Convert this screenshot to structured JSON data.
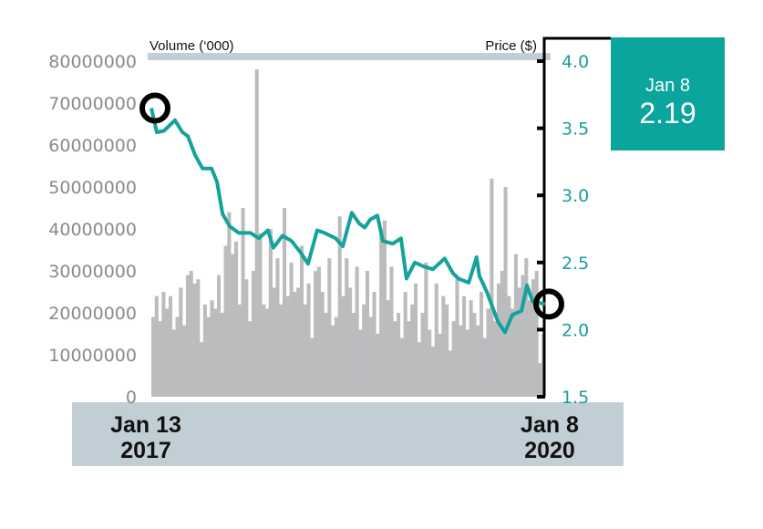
{
  "chart_data": {
    "type": "bar+line",
    "left_axis": {
      "title": "Volume (‘000)",
      "ticks": [
        "0",
        "10000000",
        "20000000",
        "30000000",
        "40000000",
        "50000000",
        "60000000",
        "70000000",
        "80000000"
      ],
      "range": [
        0,
        80000000
      ]
    },
    "right_axis": {
      "title": "Price ($)",
      "ticks": [
        "1.5",
        "2.0",
        "2.5",
        "3.0",
        "3.5",
        "4.0"
      ],
      "range": [
        1.5,
        4.0
      ]
    },
    "x_labels": [
      {
        "line1": "Jan 13",
        "line2": "2017"
      },
      {
        "line1": "Jan 8",
        "line2": "2020"
      }
    ],
    "price_series": {
      "name": "Price",
      "color": "#14a39b",
      "x": [
        0,
        0.014,
        0.032,
        0.06,
        0.079,
        0.093,
        0.111,
        0.13,
        0.153,
        0.167,
        0.181,
        0.199,
        0.222,
        0.252,
        0.273,
        0.296,
        0.31,
        0.333,
        0.356,
        0.38,
        0.398,
        0.421,
        0.44,
        0.468,
        0.486,
        0.509,
        0.528,
        0.542,
        0.556,
        0.574,
        0.588,
        0.613,
        0.634,
        0.648,
        0.669,
        0.692,
        0.715,
        0.745,
        0.766,
        0.78,
        0.806,
        0.826,
        0.833,
        0.852,
        0.88,
        0.898,
        0.917,
        0.94,
        0.954,
        0.968,
        1.0
      ],
      "values": [
        3.65,
        3.47,
        3.48,
        3.56,
        3.47,
        3.44,
        3.3,
        3.2,
        3.2,
        3.1,
        2.86,
        2.77,
        2.72,
        2.72,
        2.68,
        2.74,
        2.61,
        2.7,
        2.66,
        2.57,
        2.49,
        2.74,
        2.72,
        2.68,
        2.62,
        2.87,
        2.79,
        2.76,
        2.82,
        2.85,
        2.66,
        2.64,
        2.68,
        2.38,
        2.5,
        2.47,
        2.45,
        2.53,
        2.42,
        2.38,
        2.35,
        2.54,
        2.4,
        2.28,
        2.06,
        1.98,
        2.11,
        2.14,
        2.33,
        2.21,
        2.19
      ]
    },
    "volume_series": {
      "name": "Volume",
      "color": "#bbbcbe",
      "values": [
        19,
        24,
        18,
        25,
        21,
        24,
        16,
        19,
        26,
        17,
        29,
        30,
        27,
        28,
        13,
        22,
        19,
        23,
        21,
        29,
        20,
        36,
        44,
        34,
        37,
        22,
        45,
        28,
        18,
        30,
        78,
        39,
        22,
        21,
        40,
        26,
        33,
        22,
        45,
        24,
        32,
        25,
        26,
        36,
        22,
        27,
        14,
        30,
        31,
        25,
        20,
        33,
        17,
        19,
        43,
        24,
        33,
        26,
        20,
        31,
        16,
        22,
        30,
        19,
        25,
        15,
        40,
        42,
        23,
        31,
        18,
        20,
        14,
        25,
        18,
        22,
        27,
        13,
        20,
        32,
        16,
        12,
        27,
        15,
        24,
        22,
        11,
        18,
        28,
        17,
        24,
        16,
        23,
        20,
        17,
        25,
        14,
        21,
        52,
        18,
        27,
        30,
        50,
        24,
        21,
        34,
        26,
        29,
        33,
        23,
        28,
        30,
        8,
        15
      ]
    },
    "start_marker": {
      "date": "Jan 13 2017",
      "price": 3.65
    },
    "end_marker": {
      "date": "Jan 8 2020",
      "price": 2.19
    }
  },
  "callout": {
    "date": "Jan 8",
    "value": "2.19",
    "color": "#0aa59c"
  }
}
